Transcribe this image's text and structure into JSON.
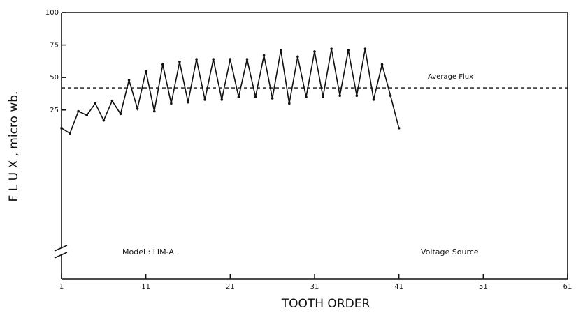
{
  "chart_data": {
    "type": "line",
    "xlabel": "TOOTH ORDER",
    "ylabel": "F L U X , micro wb.",
    "x": [
      1,
      2,
      3,
      4,
      5,
      6,
      7,
      8,
      9,
      10,
      11,
      12,
      13,
      14,
      15,
      16,
      17,
      18,
      19,
      20,
      21,
      22,
      23,
      24,
      25,
      26,
      27,
      28,
      29,
      30,
      31,
      32,
      33,
      34,
      35,
      36,
      37,
      38,
      39,
      40,
      41
    ],
    "series": [
      {
        "name": "Flux",
        "color": "#111111",
        "values": [
          11,
          7,
          24,
          21,
          30,
          17,
          32,
          22,
          48,
          26,
          55,
          24,
          60,
          30,
          62,
          31,
          64,
          33,
          64,
          33,
          64,
          35,
          64,
          35,
          67,
          34,
          71,
          30,
          66,
          35,
          70,
          35,
          72,
          36,
          71,
          36,
          72,
          33,
          60,
          36,
          11
        ]
      }
    ],
    "reference_line": {
      "value": 42,
      "label": "Average Flux"
    },
    "annotations": [
      "Model : LIM-A",
      "Voltage Source"
    ],
    "xlim": [
      1,
      61
    ],
    "xticks": [
      1,
      11,
      21,
      31,
      41,
      51,
      61
    ],
    "ylim": [
      -105,
      100
    ],
    "yticks": [
      25,
      50,
      75,
      100
    ]
  }
}
